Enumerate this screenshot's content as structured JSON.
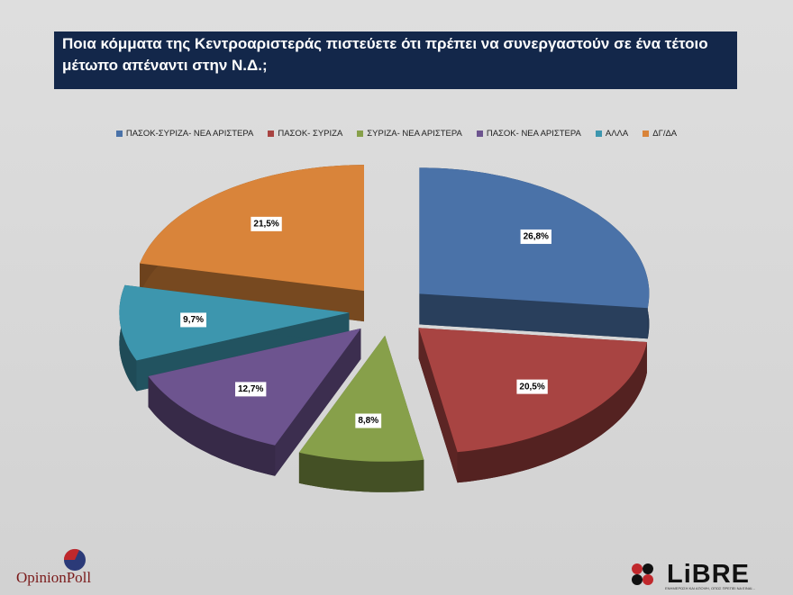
{
  "title": "Ποια κόμματα της Κεντροαριστεράς πιστεύετε ότι πρέπει να συνεργαστούν σε ένα τέτοιο μέτωπο απέναντι στην Ν.Δ.;",
  "chart_data": {
    "type": "pie",
    "categories": [
      "ΠΑΣΟΚ-ΣΥΡΙΖΑ- ΝΕΑ ΑΡΙΣΤΕΡΑ",
      "ΠΑΣΟΚ- ΣΥΡΙΖΑ",
      "ΣΥΡΙΖΑ- ΝΕΑ ΑΡΙΣΤΕΡΑ",
      "ΠΑΣΟΚ- ΝΕΑ ΑΡΙΣΤΕΡΑ",
      "ΑΛΛΑ",
      "ΔΓ/ΔΑ"
    ],
    "values": [
      26.8,
      20.5,
      8.8,
      12.7,
      9.7,
      21.5
    ],
    "value_labels": [
      "26,8%",
      "20,5%",
      "8,8%",
      "12,7%",
      "9,7%",
      "21,5%"
    ],
    "colors": [
      "#4a72a8",
      "#a84442",
      "#87a04a",
      "#6d548f",
      "#3d96ae",
      "#d9843a"
    ],
    "legend": "top"
  },
  "logos": {
    "left": "OpinionPoll",
    "right": "LiBRE",
    "right_tagline": "ΕΝΗΜΕΡΩΣΗ ΚΑΙ ΑΠΟΨΗ, ΟΠΩΣ ΠΡΕΠΕΙ ΝΑ ΕΙΝΑΙ..."
  }
}
